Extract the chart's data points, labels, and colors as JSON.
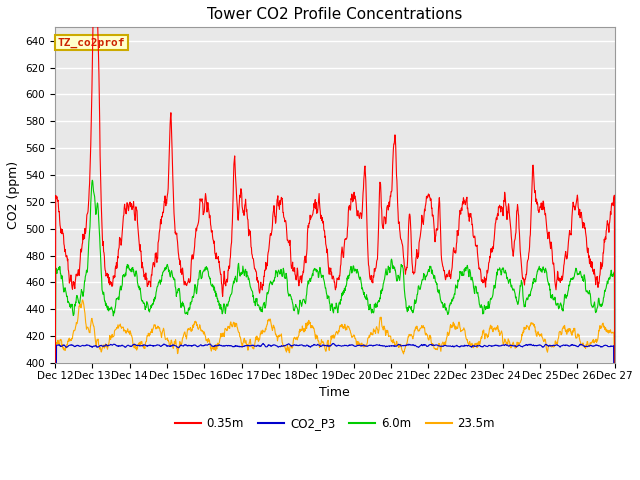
{
  "title": "Tower CO2 Profile Concentrations",
  "xlabel": "Time",
  "ylabel": "CO2 (ppm)",
  "ylim": [
    400,
    650
  ],
  "yticks": [
    400,
    420,
    440,
    460,
    480,
    500,
    520,
    540,
    560,
    580,
    600,
    620,
    640
  ],
  "xtick_labels": [
    "Dec 12",
    "Dec 13",
    "Dec 14",
    "Dec 15",
    "Dec 16",
    "Dec 17",
    "Dec 18",
    "Dec 19",
    "Dec 20",
    "Dec 21",
    "Dec 22",
    "Dec 23",
    "Dec 24",
    "Dec 25",
    "Dec 26",
    "Dec 27"
  ],
  "annotation_text": "TZ_co2prof",
  "annotation_bg": "#ffffcc",
  "annotation_border": "#ccaa00",
  "fig_bg": "#ffffff",
  "plot_bg": "#e8e8e8",
  "grid_color": "#ffffff",
  "line_colors": {
    "red": "#ff0000",
    "blue": "#0000cc",
    "green": "#00cc00",
    "orange": "#ffaa00"
  },
  "legend_labels": [
    "0.35m",
    "CO2_P3",
    "6.0m",
    "23.5m"
  ],
  "title_fontsize": 11,
  "axis_label_fontsize": 9,
  "tick_fontsize": 7.5
}
